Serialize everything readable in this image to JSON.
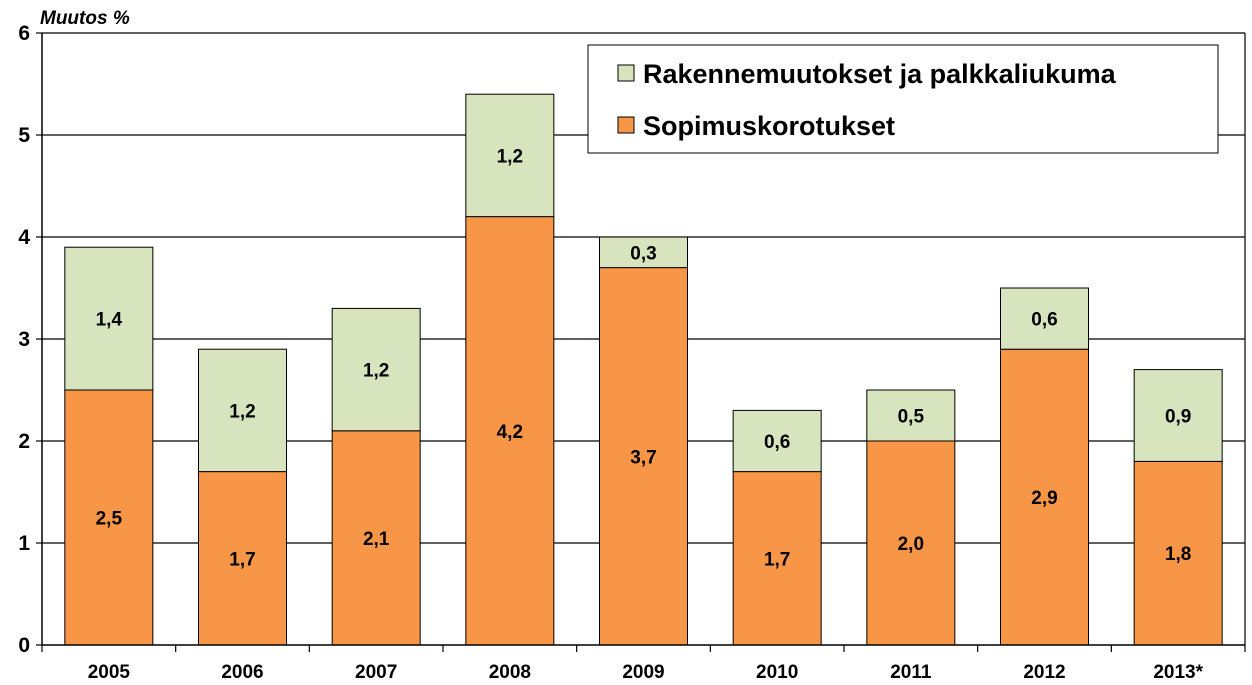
{
  "chart_data": {
    "type": "bar",
    "stacked": true,
    "ylabel": "Muutos %",
    "xlabel": "",
    "ylim": [
      0,
      6
    ],
    "y_ticks": [
      "0",
      "1",
      "2",
      "3",
      "4",
      "5",
      "6"
    ],
    "grid": true,
    "legend_position": "top-right",
    "categories": [
      "2005",
      "2006",
      "2007",
      "2008",
      "2009",
      "2010",
      "2011",
      "2012",
      "2013*"
    ],
    "series": [
      {
        "name": "Sopimuskorotukset",
        "color": "#f79646",
        "values": [
          2.5,
          1.7,
          2.1,
          4.2,
          3.7,
          1.7,
          2.0,
          2.9,
          1.8
        ],
        "labels": [
          "2,5",
          "1,7",
          "2,1",
          "4,2",
          "3,7",
          "1,7",
          "2,0",
          "2,9",
          "1,8"
        ]
      },
      {
        "name": "Rakennemuutokset ja palkkaliukuma",
        "color": "#d7e4bd",
        "values": [
          1.4,
          1.2,
          1.2,
          1.2,
          0.3,
          0.6,
          0.5,
          0.6,
          0.9
        ],
        "labels": [
          "1,4",
          "1,2",
          "1,2",
          "1,2",
          "0,3",
          "0,6",
          "0,5",
          "0,6",
          "0,9"
        ]
      }
    ],
    "legend_order": [
      1,
      0
    ]
  }
}
